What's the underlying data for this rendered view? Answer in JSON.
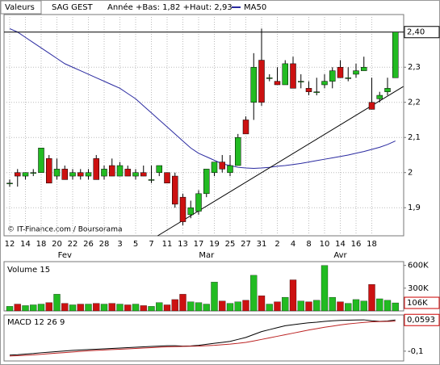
{
  "chart_data": [
    {
      "type": "candlestick",
      "label": "Valeurs",
      "title": "SAG GEST",
      "subtitle": "Année +Bas: 1,82 +Haut: 2,93",
      "source": "© IT-Finance.com / Boursorama",
      "categories": [
        "12",
        null,
        "14",
        null,
        "18",
        null,
        "20",
        null,
        "22",
        null,
        "26",
        null,
        "28",
        null,
        "3",
        null,
        "5",
        null,
        "7",
        null,
        "11",
        null,
        "13",
        null,
        "17",
        null,
        "19",
        null,
        "25",
        null,
        "27",
        null,
        "31",
        null,
        "2",
        null,
        "4",
        null,
        "8",
        null,
        "10",
        null,
        "14",
        null,
        "16",
        null,
        "18",
        null,
        null,
        null
      ],
      "months": [
        {
          "label": "Fev",
          "at": 7
        },
        {
          "label": "Mar",
          "at": 25
        },
        {
          "label": "Avr",
          "at": 42
        }
      ],
      "open": [
        1.97,
        2.0,
        1.99,
        2.0,
        2.0,
        2.04,
        1.99,
        2.01,
        1.99,
        2.0,
        1.99,
        2.04,
        1.99,
        2.02,
        1.99,
        2.01,
        1.99,
        2.0,
        1.98,
        2.0,
        2.0,
        1.99,
        1.93,
        1.88,
        1.89,
        1.94,
        2.0,
        2.03,
        2.0,
        2.02,
        2.15,
        2.2,
        2.32,
        2.27,
        2.26,
        2.25,
        2.31,
        2.26,
        2.24,
        2.23,
        2.25,
        2.26,
        2.3,
        2.27,
        2.28,
        2.29,
        2.2,
        2.21,
        2.23,
        2.27
      ],
      "high": [
        1.98,
        2.01,
        2.0,
        2.01,
        2.07,
        2.05,
        2.04,
        2.02,
        2.01,
        2.01,
        2.01,
        2.05,
        2.02,
        2.04,
        2.03,
        2.02,
        2.01,
        2.02,
        2.02,
        2.02,
        2.0,
        2.0,
        1.94,
        1.92,
        1.95,
        2.01,
        2.03,
        2.05,
        2.05,
        2.11,
        2.16,
        2.34,
        2.41,
        2.28,
        2.3,
        2.32,
        2.33,
        2.28,
        2.26,
        2.27,
        2.28,
        2.3,
        2.32,
        2.3,
        2.31,
        2.33,
        2.27,
        2.23,
        2.27,
        2.4
      ],
      "low": [
        1.96,
        1.96,
        1.98,
        1.99,
        2.0,
        1.97,
        1.98,
        1.98,
        1.98,
        1.98,
        1.98,
        1.98,
        1.98,
        1.99,
        1.99,
        1.99,
        1.98,
        1.99,
        1.97,
        1.99,
        1.97,
        1.9,
        1.85,
        1.87,
        1.88,
        1.93,
        1.99,
        2.0,
        1.99,
        2.02,
        2.11,
        2.15,
        2.19,
        2.26,
        2.25,
        2.25,
        2.24,
        2.24,
        2.22,
        2.22,
        2.24,
        2.24,
        2.27,
        2.26,
        2.27,
        2.29,
        2.18,
        2.2,
        2.22,
        2.27
      ],
      "close": [
        1.97,
        1.99,
        2.0,
        2.0,
        2.07,
        1.97,
        2.01,
        1.98,
        2.0,
        1.99,
        2.0,
        1.98,
        2.01,
        1.99,
        2.02,
        1.99,
        2.0,
        1.99,
        1.98,
        2.02,
        1.97,
        1.91,
        1.86,
        1.9,
        1.94,
        2.01,
        2.03,
        2.01,
        2.02,
        2.1,
        2.11,
        2.3,
        2.2,
        2.27,
        2.25,
        2.31,
        2.24,
        2.26,
        2.23,
        2.23,
        2.26,
        2.29,
        2.27,
        2.27,
        2.29,
        2.3,
        2.18,
        2.22,
        2.24,
        2.4
      ],
      "up_color": "#22bb22",
      "down_color": "#cc1111",
      "series": [
        {
          "name": "MA50",
          "color": "#2a2aa0",
          "values": [
            2.41,
            2.4,
            2.385,
            2.37,
            2.355,
            2.34,
            2.325,
            2.31,
            2.3,
            2.29,
            2.28,
            2.27,
            2.26,
            2.25,
            2.24,
            2.225,
            2.21,
            2.19,
            2.17,
            2.15,
            2.13,
            2.11,
            2.09,
            2.07,
            2.055,
            2.045,
            2.035,
            2.025,
            2.02,
            2.015,
            2.013,
            2.012,
            2.013,
            2.015,
            2.018,
            2.02,
            2.023,
            2.026,
            2.03,
            2.034,
            2.038,
            2.042,
            2.046,
            2.05,
            2.055,
            2.06,
            2.066,
            2.072,
            2.08,
            2.09
          ]
        }
      ],
      "trend_line": {
        "x": [
          18.8,
          50
        ],
        "y": [
          1.82,
          2.245
        ]
      },
      "last_price": {
        "value": 2.4,
        "label": "2,40"
      },
      "ylim": [
        1.82,
        2.45
      ],
      "yticks": [
        {
          "value": 1.9,
          "label": "1,9"
        },
        {
          "value": 2,
          "label": "2"
        },
        {
          "value": 2.1,
          "label": "2,1"
        },
        {
          "value": 2.2,
          "label": "2,2"
        },
        {
          "value": 2.3,
          "label": "2,3"
        }
      ],
      "grid": true
    },
    {
      "type": "bar",
      "title": "Volume 15",
      "values": [
        60000,
        90000,
        70000,
        80000,
        90000,
        110000,
        220000,
        100000,
        80000,
        90000,
        90000,
        100000,
        90000,
        100000,
        90000,
        80000,
        90000,
        70000,
        60000,
        110000,
        80000,
        150000,
        220000,
        120000,
        110000,
        90000,
        380000,
        130000,
        100000,
        120000,
        140000,
        470000,
        200000,
        90000,
        120000,
        180000,
        410000,
        130000,
        120000,
        140000,
        600000,
        180000,
        120000,
        100000,
        150000,
        130000,
        350000,
        160000,
        140000,
        106000
      ],
      "last_label": "106K",
      "ylim": [
        0,
        650000
      ],
      "yticks": [
        {
          "value": 300000,
          "label": "300K"
        },
        {
          "value": 600000,
          "label": "600K"
        }
      ]
    },
    {
      "type": "line",
      "title": "MACD 12 26 9",
      "series": [
        {
          "color": "#000000",
          "values": [
            -0.12,
            -0.118,
            -0.115,
            -0.112,
            -0.108,
            -0.105,
            -0.102,
            -0.099,
            -0.096,
            -0.094,
            -0.092,
            -0.09,
            -0.088,
            -0.086,
            -0.084,
            -0.082,
            -0.08,
            -0.078,
            -0.076,
            -0.074,
            -0.072,
            -0.072,
            -0.074,
            -0.073,
            -0.07,
            -0.065,
            -0.06,
            -0.055,
            -0.05,
            -0.04,
            -0.03,
            -0.015,
            0.0,
            0.01,
            0.02,
            0.03,
            0.035,
            0.04,
            0.045,
            0.048,
            0.052,
            0.055,
            0.057,
            0.058,
            0.059,
            0.06,
            0.055,
            0.052,
            0.054,
            0.0593
          ]
        },
        {
          "color": "#bb2222",
          "values": [
            -0.125,
            -0.123,
            -0.121,
            -0.119,
            -0.116,
            -0.113,
            -0.11,
            -0.107,
            -0.104,
            -0.101,
            -0.098,
            -0.096,
            -0.094,
            -0.092,
            -0.09,
            -0.088,
            -0.086,
            -0.084,
            -0.082,
            -0.08,
            -0.078,
            -0.077,
            -0.076,
            -0.075,
            -0.074,
            -0.072,
            -0.07,
            -0.067,
            -0.064,
            -0.06,
            -0.055,
            -0.048,
            -0.04,
            -0.032,
            -0.024,
            -0.016,
            -0.008,
            0.0,
            0.008,
            0.015,
            0.022,
            0.028,
            0.034,
            0.039,
            0.043,
            0.047,
            0.05,
            0.051,
            0.052,
            0.053
          ]
        }
      ],
      "last_label": "0,0593",
      "ylim": [
        -0.15,
        0.085
      ],
      "yticks": [
        {
          "value": -0.1,
          "label": "-0,1"
        }
      ]
    }
  ]
}
